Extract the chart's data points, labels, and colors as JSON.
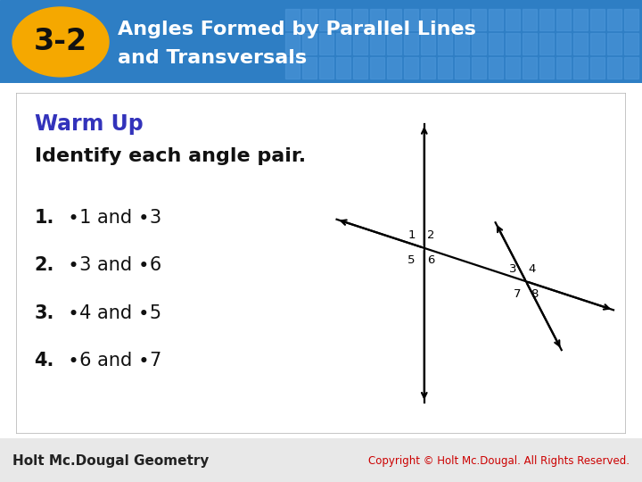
{
  "title_line1": "Angles Formed by Parallel Lines",
  "title_line2": "and Transversals",
  "badge_text": "3-2",
  "header_bg_color": "#2e7ec4",
  "header_grid_color": "#4a95d8",
  "badge_fill": "#f5a800",
  "badge_text_color": "#111111",
  "title_text_color": "#ffffff",
  "content_bg_color": "#ffffff",
  "content_border_color": "#aaaaaa",
  "warm_up_color": "#3333bb",
  "warm_up_text": "Warm Up",
  "subtitle_text": "Identify each angle pair.",
  "item_numbers": [
    "1.",
    "2.",
    "3.",
    "4."
  ],
  "item_texts": [
    "∙1 and ∙3",
    "∙3 and ∙6",
    "∙4 and ∙5",
    "∙6 and ∙7"
  ],
  "footer_left": "Holt Mc.Dougal Geometry",
  "footer_right": "Copyright © Holt Mc.Dougal. All Rights Reserved.",
  "footer_left_color": "#222222",
  "footer_right_color": "#cc0000",
  "footer_bg": "#e8e8e8"
}
